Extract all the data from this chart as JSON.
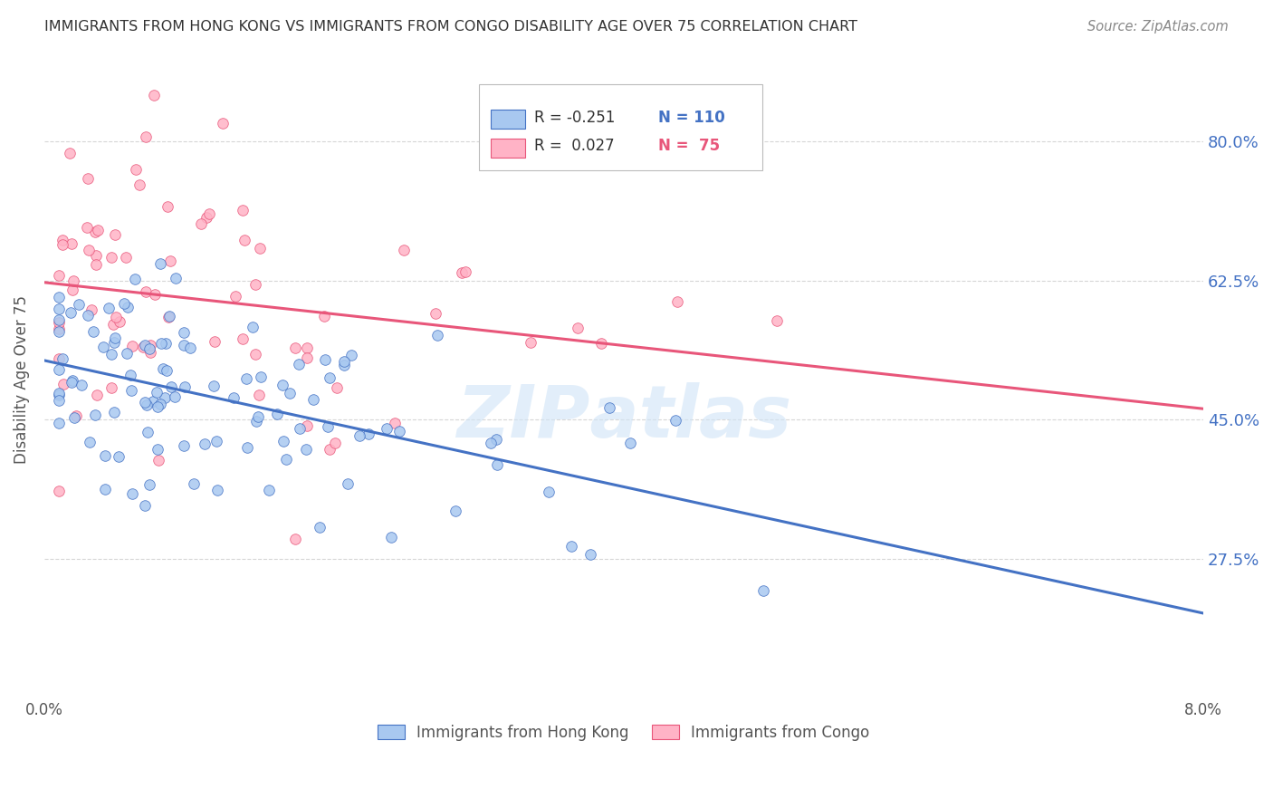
{
  "title": "IMMIGRANTS FROM HONG KONG VS IMMIGRANTS FROM CONGO DISABILITY AGE OVER 75 CORRELATION CHART",
  "source": "Source: ZipAtlas.com",
  "ylabel": "Disability Age Over 75",
  "xlim": [
    0.0,
    0.08
  ],
  "ylim": [
    0.1,
    0.9
  ],
  "hk_color": "#a8c8f0",
  "hk_line_color": "#4472c4",
  "congo_color": "#ffb3c6",
  "congo_line_color": "#e8567a",
  "legend_label_hk": "Immigrants from Hong Kong",
  "legend_label_congo": "Immigrants from Congo",
  "R_hk": -0.251,
  "N_hk": 110,
  "R_congo": 0.027,
  "N_congo": 75,
  "background_color": "#ffffff",
  "grid_color": "#cccccc",
  "ytick_positions": [
    0.275,
    0.45,
    0.625,
    0.8
  ],
  "ytick_labels": [
    "27.5%",
    "45.0%",
    "62.5%",
    "80.0%"
  ]
}
